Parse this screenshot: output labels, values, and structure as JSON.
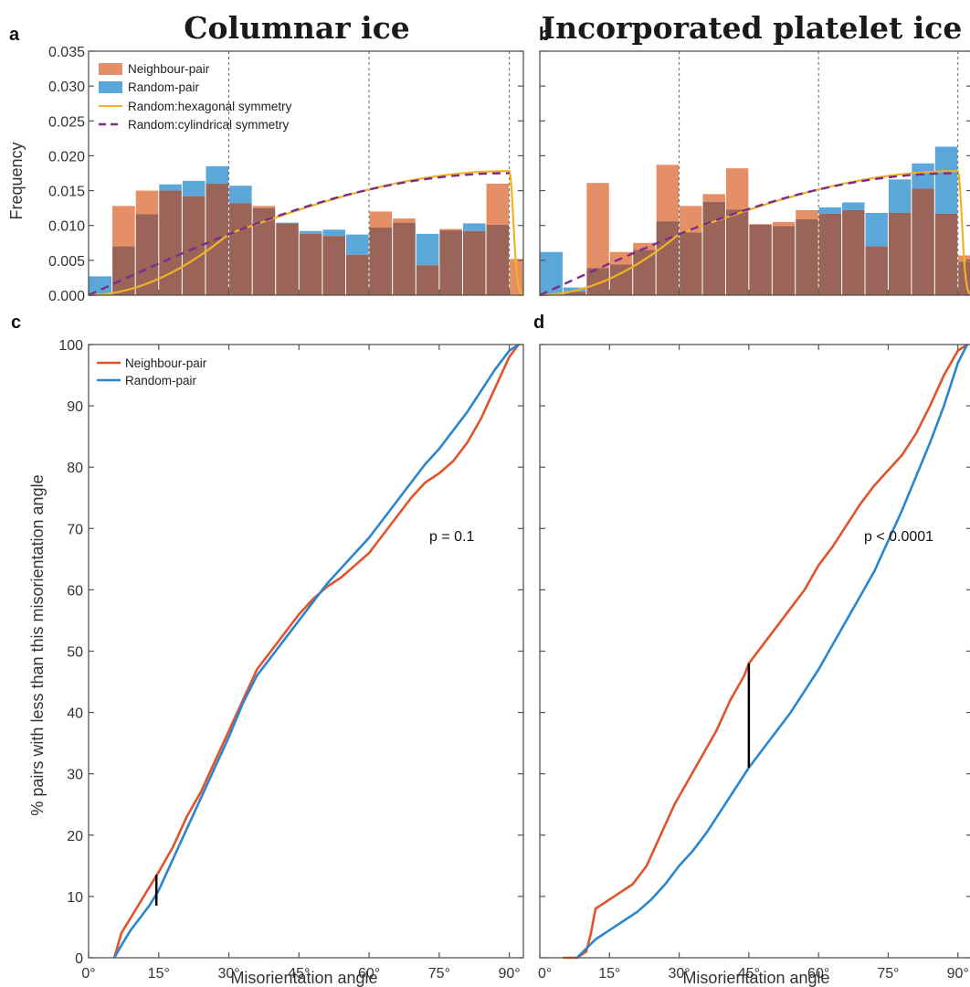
{
  "chart_data": [
    {
      "panel": "a",
      "type": "bar",
      "title": "Columnar ice",
      "xlabel": "",
      "ylabel": "Frequency",
      "xlim": [
        0,
        93
      ],
      "ylim": [
        0,
        0.035
      ],
      "yticks": [
        "0.000",
        "0.005",
        "0.010",
        "0.015",
        "0.020",
        "0.025",
        "0.030",
        "0.035"
      ],
      "vlines": [
        30,
        60,
        90
      ],
      "bin_width": 5,
      "bin_starts": [
        0,
        5,
        10,
        15,
        20,
        25,
        30,
        35,
        40,
        45,
        50,
        55,
        60,
        65,
        70,
        75,
        80,
        85,
        90
      ],
      "series": [
        {
          "name": "Neighbour-pair",
          "values": [
            0.0,
            0.0128,
            0.015,
            0.015,
            0.0142,
            0.016,
            0.0132,
            0.0128,
            0.0103,
            0.0088,
            0.0085,
            0.0058,
            0.012,
            0.011,
            0.0043,
            0.0095,
            0.0092,
            0.016,
            0.0052
          ]
        },
        {
          "name": "Random-pair",
          "values": [
            0.0027,
            0.007,
            0.0116,
            0.0159,
            0.0164,
            0.0185,
            0.0157,
            0.0125,
            0.0104,
            0.0092,
            0.0094,
            0.0087,
            0.0097,
            0.0104,
            0.0088,
            0.0093,
            0.0103,
            0.0101,
            0.0
          ]
        }
      ],
      "curves": [
        {
          "name": "Random:hexagonal symmetry",
          "kind": "hexagonal"
        },
        {
          "name": "Random:cylindrical symmetry",
          "kind": "cylindrical"
        }
      ]
    },
    {
      "panel": "b",
      "type": "bar",
      "title": "Incorporated platelet ice",
      "xlabel": "",
      "ylabel": "",
      "xlim": [
        0,
        93
      ],
      "ylim": [
        0,
        0.035
      ],
      "vlines": [
        30,
        60,
        90
      ],
      "bin_width": 5,
      "bin_starts": [
        0,
        5,
        10,
        15,
        20,
        25,
        30,
        35,
        40,
        45,
        50,
        55,
        60,
        65,
        70,
        75,
        80,
        85,
        90
      ],
      "series": [
        {
          "name": "Neighbour-pair",
          "values": [
            0.0,
            0.0005,
            0.0161,
            0.0062,
            0.0075,
            0.0187,
            0.0128,
            0.0145,
            0.0182,
            0.0102,
            0.0105,
            0.0122,
            0.0117,
            0.0122,
            0.007,
            0.0118,
            0.0153,
            0.0117,
            0.0057
          ]
        },
        {
          "name": "Random-pair",
          "values": [
            0.0062,
            0.0011,
            0.0039,
            0.0044,
            0.0065,
            0.0106,
            0.009,
            0.0134,
            0.0123,
            0.0101,
            0.0099,
            0.0109,
            0.0126,
            0.0133,
            0.0118,
            0.0166,
            0.0189,
            0.0213,
            0.0048
          ]
        }
      ],
      "curves": [
        {
          "name": "Random:hexagonal symmetry",
          "kind": "hexagonal"
        },
        {
          "name": "Random:cylindrical symmetry",
          "kind": "cylindrical"
        }
      ]
    },
    {
      "panel": "c",
      "type": "line",
      "xlabel": "Misorientation angle",
      "ylabel": "% pairs with less than this misorientation angle",
      "xlim": [
        0,
        93
      ],
      "ylim": [
        0,
        100
      ],
      "xticks": [
        "0°",
        "15°",
        "30°",
        "45°",
        "60°",
        "75°",
        "90°"
      ],
      "yticks": [
        "0",
        "10",
        "20",
        "30",
        "40",
        "50",
        "60",
        "70",
        "80",
        "90",
        "100"
      ],
      "annotation": "p = 0.1",
      "ks_line": {
        "x": 14.5,
        "y1": 8.5,
        "y2": 13.5
      },
      "series": [
        {
          "name": "Neighbour-pair",
          "x": [
            5.5,
            7,
            9,
            11,
            13,
            15,
            18,
            21,
            24,
            27,
            30,
            33,
            36,
            39,
            42,
            45,
            48,
            51,
            54,
            57,
            60,
            63,
            66,
            69,
            72,
            75,
            78,
            81,
            84,
            87,
            90,
            92
          ],
          "y": [
            0,
            4,
            6.5,
            9,
            11.5,
            14,
            18,
            23,
            27,
            32,
            37,
            42,
            47,
            50,
            53,
            56,
            58.5,
            60.5,
            62,
            64,
            66,
            69,
            72,
            75,
            77.5,
            79,
            81,
            84,
            88,
            93,
            98,
            100
          ]
        },
        {
          "name": "Random-pair",
          "x": [
            5.5,
            7,
            9,
            11,
            13,
            15,
            18,
            21,
            24,
            27,
            30,
            33,
            36,
            39,
            42,
            45,
            48,
            51,
            54,
            57,
            60,
            63,
            66,
            69,
            72,
            75,
            78,
            81,
            84,
            87,
            90,
            92
          ],
          "y": [
            0,
            2,
            4.5,
            6.5,
            8.5,
            11,
            16,
            21,
            26,
            31,
            36,
            41.5,
            46,
            49,
            52,
            55,
            58,
            61,
            63.5,
            66,
            68.5,
            71.5,
            74.5,
            77.5,
            80.5,
            83,
            86,
            89,
            92.5,
            96,
            99,
            100
          ]
        }
      ]
    },
    {
      "panel": "d",
      "type": "line",
      "xlabel": "Misorientation angle",
      "ylabel": "",
      "xlim": [
        0,
        93
      ],
      "ylim": [
        0,
        100
      ],
      "xticks": [
        "0°",
        "15°",
        "30°",
        "45°",
        "60°",
        "75°",
        "90°"
      ],
      "annotation": "p < 0.0001",
      "ks_line": {
        "x": 45,
        "y1": 31,
        "y2": 48
      },
      "series": [
        {
          "name": "Neighbour-pair",
          "x": [
            5,
            8,
            10,
            11,
            12,
            14,
            17,
            20,
            23,
            26,
            29,
            32,
            35,
            38,
            41,
            44,
            45,
            48,
            51,
            54,
            57,
            60,
            63,
            66,
            69,
            72,
            75,
            78,
            81,
            84,
            87,
            90,
            92
          ],
          "y": [
            0,
            0,
            1,
            4,
            8,
            9,
            10.5,
            12,
            15,
            20,
            25,
            29,
            33,
            37,
            42,
            46,
            48,
            51,
            54,
            57,
            60,
            64,
            67,
            70.5,
            74,
            77,
            79.5,
            82,
            85.5,
            90,
            95,
            99,
            100
          ]
        },
        {
          "name": "Random-pair",
          "x": [
            8,
            10,
            12,
            15,
            18,
            21,
            24,
            27,
            30,
            33,
            36,
            39,
            42,
            45,
            48,
            51,
            54,
            57,
            60,
            63,
            66,
            69,
            72,
            75,
            78,
            81,
            84,
            87,
            90,
            92
          ],
          "y": [
            0,
            1.5,
            3,
            4.5,
            6,
            7.5,
            9.5,
            12,
            15,
            17.5,
            20.5,
            24,
            27.5,
            31,
            34,
            37,
            40,
            43.5,
            47,
            51,
            55,
            59,
            63,
            68,
            73,
            78.5,
            84,
            90,
            97,
            100
          ]
        }
      ]
    }
  ],
  "legend_top": {
    "items": [
      {
        "label": "Neighbour-pair",
        "kind": "patch",
        "color": "#e58f67"
      },
      {
        "label": "Random-pair",
        "kind": "patch",
        "color": "#5ba7da"
      },
      {
        "label": "Random:hexagonal symmetry",
        "kind": "line",
        "color": "#f0b323"
      },
      {
        "label": "Random:cylindrical symmetry",
        "kind": "dashed",
        "color": "#7b2d8e"
      }
    ]
  },
  "legend_bottom": {
    "items": [
      {
        "label": "Neighbour-pair",
        "color": "#e3532a"
      },
      {
        "label": "Random-pair",
        "color": "#2a86cf"
      }
    ]
  },
  "colors": {
    "neighbour_bar": "#e58f67",
    "random_bar": "#5ba7da",
    "overlap_bar": "#9a6459",
    "hex_curve": "#f0b323",
    "cyl_curve": "#7b2d8e",
    "neighbour_line": "#e3532a",
    "random_line": "#2a86cf"
  }
}
